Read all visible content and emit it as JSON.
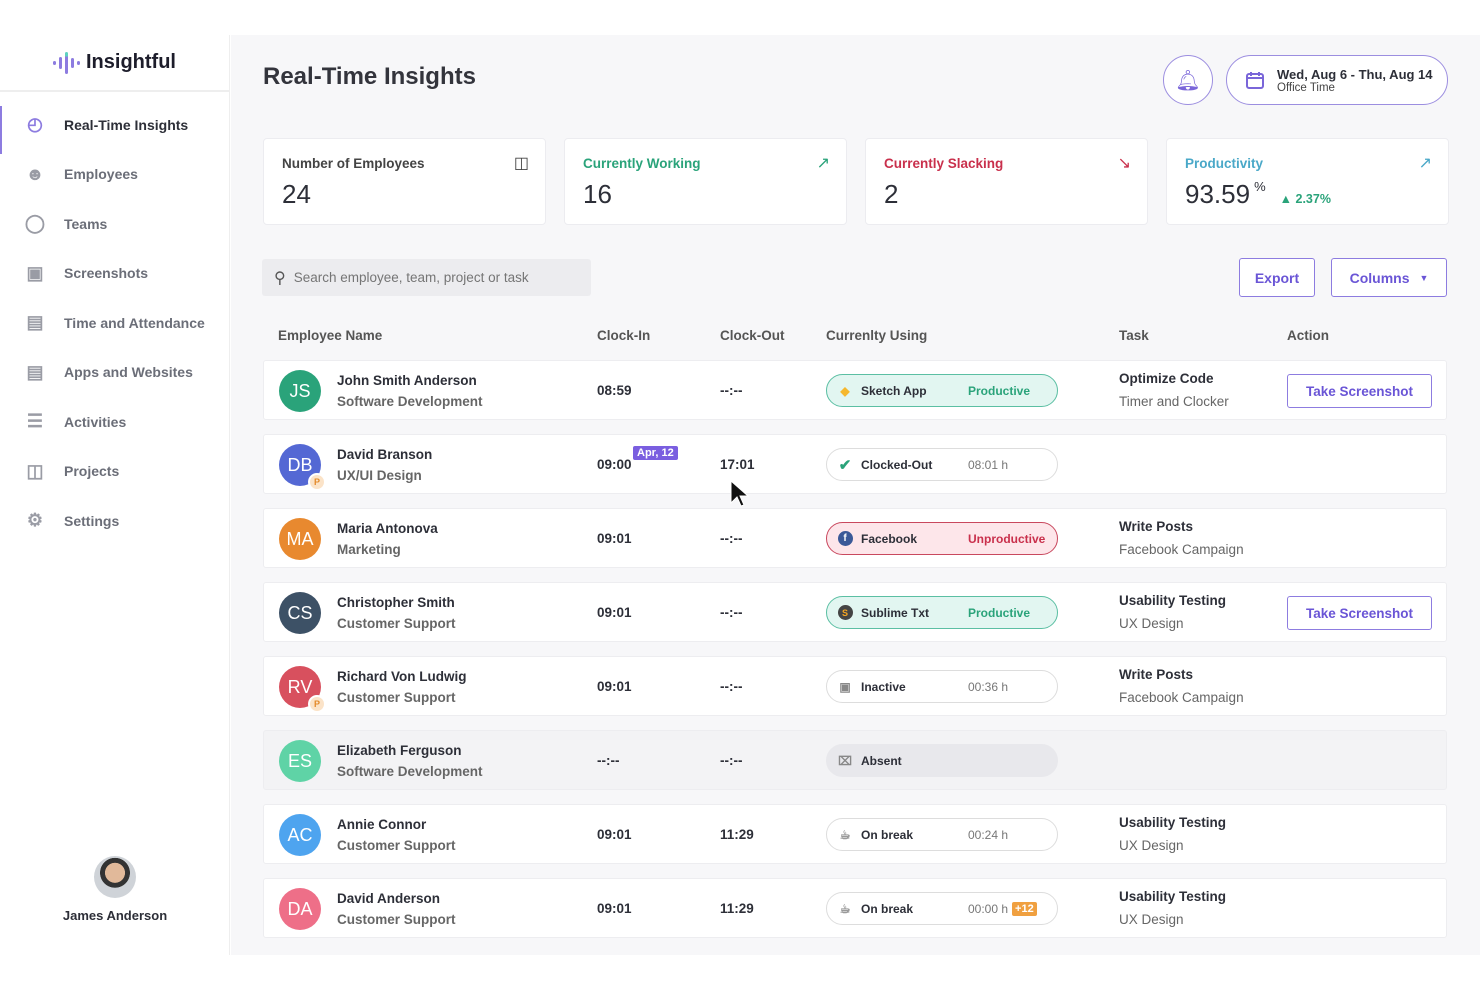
{
  "app": {
    "name": "Insightful"
  },
  "sidebar": {
    "items": [
      {
        "label": "Real-Time Insights",
        "icon": "dashboard-gauge-icon",
        "active": true
      },
      {
        "label": "Employees",
        "icon": "users-icon"
      },
      {
        "label": "Teams",
        "icon": "teams-circles-icon"
      },
      {
        "label": "Screenshots",
        "icon": "image-gallery-icon"
      },
      {
        "label": "Time and Attendance",
        "icon": "calendar-icon"
      },
      {
        "label": "Apps and Websites",
        "icon": "monitor-icon"
      },
      {
        "label": "Activities",
        "icon": "list-icon"
      },
      {
        "label": "Projects",
        "icon": "briefcase-icon"
      },
      {
        "label": "Settings",
        "icon": "gear-icon"
      }
    ],
    "user": "James Anderson"
  },
  "header": {
    "title": "Real-Time Insights",
    "date_range": "Wed, Aug 6 - Thu, Aug 14",
    "date_sub": "Office Time"
  },
  "cards": [
    {
      "label": "Number of Employees",
      "value": "24",
      "color": "#444444",
      "icon": "briefcase-icon"
    },
    {
      "label": "Currently Working",
      "value": "16",
      "color": "#2aa37a",
      "icon": "trend-up-icon"
    },
    {
      "label": "Currently Slacking",
      "value": "2",
      "color": "#c9304c",
      "icon": "trend-down-icon"
    },
    {
      "label": "Productivity",
      "value": "93.59",
      "unit": "%",
      "delta": "2.37%",
      "color": "#4aa8c8",
      "icon": "trend-up-icon"
    }
  ],
  "toolbar": {
    "search_placeholder": "Search employee, team, project or task",
    "export": "Export",
    "columns": "Columns"
  },
  "table": {
    "headers": [
      "Employee Name",
      "Clock-In",
      "Clock-Out",
      "Currenlty Using",
      "Task",
      "Action"
    ],
    "rows": [
      {
        "initials": "JS",
        "color": "#2aa37a",
        "name": "John Smith Anderson",
        "dept": "Software Development",
        "in": "08:59",
        "out": "--:--",
        "app": "Sketch App",
        "app_icon": "sketch-diamond-icon",
        "status": "Productive",
        "kind": "productive",
        "task": "Optimize Code",
        "project": "Timer and Clocker",
        "action": "Take Screenshot"
      },
      {
        "initials": "DB",
        "color": "#5468d4",
        "p": "P",
        "name": "David Branson",
        "dept": "UX/UI Design",
        "in": "09:00",
        "in_tag": "Apr, 12",
        "out": "17:01",
        "app": "Clocked-Out",
        "app_icon": "check-circle-icon",
        "status": "08:01 h",
        "kind": "neutral"
      },
      {
        "initials": "MA",
        "color": "#e8892f",
        "name": "Maria Antonova",
        "dept": "Marketing",
        "in": "09:01",
        "out": "--:--",
        "app": "Facebook",
        "app_icon": "facebook-icon",
        "status": "Unproductive",
        "kind": "unproductive",
        "task": "Write Posts",
        "project": "Facebook Campaign"
      },
      {
        "initials": "CS",
        "color": "#3d5166",
        "name": "Christopher Smith",
        "dept": "Customer Support",
        "in": "09:01",
        "out": "--:--",
        "app": "Sublime Txt",
        "app_icon": "sublime-icon",
        "status": "Productive",
        "kind": "productive",
        "task": "Usability Testing",
        "project": "UX Design",
        "action": "Take Screenshot"
      },
      {
        "initials": "RV",
        "color": "#d8505e",
        "p": "P",
        "name": "Richard Von Ludwig",
        "dept": "Customer Support",
        "in": "09:01",
        "out": "--:--",
        "app": "Inactive",
        "app_icon": "inactive-monitor-icon",
        "status": "00:36 h",
        "kind": "neutral",
        "task": "Write Posts",
        "project": "Facebook Campaign"
      },
      {
        "initials": "ES",
        "color": "#5fd3a6",
        "name": "Elizabeth Ferguson",
        "dept": "Software Development",
        "in": "--:--",
        "out": "--:--",
        "app": "Absent",
        "app_icon": "absent-x-icon",
        "kind": "absentp",
        "absent": true
      },
      {
        "initials": "AC",
        "color": "#4ea4ef",
        "name": "Annie Connor",
        "dept": "Customer Support",
        "in": "09:01",
        "out": "11:29",
        "app": "On break",
        "app_icon": "coffee-cup-icon",
        "status": "00:24 h",
        "kind": "neutral",
        "task": "Usability Testing",
        "project": "UX Design"
      },
      {
        "initials": "DA",
        "color": "#ee6f88",
        "name": "David Anderson",
        "dept": "Customer Support",
        "in": "09:01",
        "out": "11:29",
        "app": "On break",
        "app_icon": "coffee-cup-icon",
        "status": "00:00 h",
        "extra": "+12",
        "kind": "neutral",
        "task": "Usability Testing",
        "project": "UX Design"
      }
    ]
  }
}
